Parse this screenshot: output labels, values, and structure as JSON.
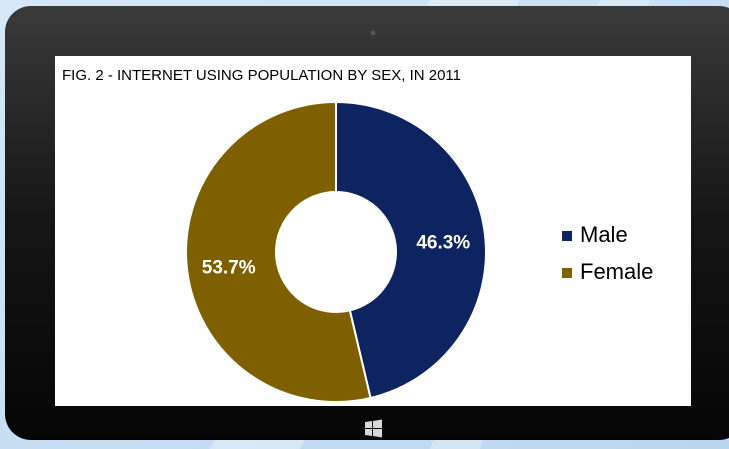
{
  "chart_data": {
    "type": "pie",
    "donut": true,
    "title": "FIG. 2 - INTERNET USING POPULATION BY SEX, IN 2011",
    "categories": [
      "Male",
      "Female"
    ],
    "values": [
      46.3,
      53.7
    ],
    "value_labels": [
      "46.3%",
      "53.7%"
    ],
    "colors": [
      "#0d2461",
      "#7f6000"
    ],
    "legend": "right"
  }
}
